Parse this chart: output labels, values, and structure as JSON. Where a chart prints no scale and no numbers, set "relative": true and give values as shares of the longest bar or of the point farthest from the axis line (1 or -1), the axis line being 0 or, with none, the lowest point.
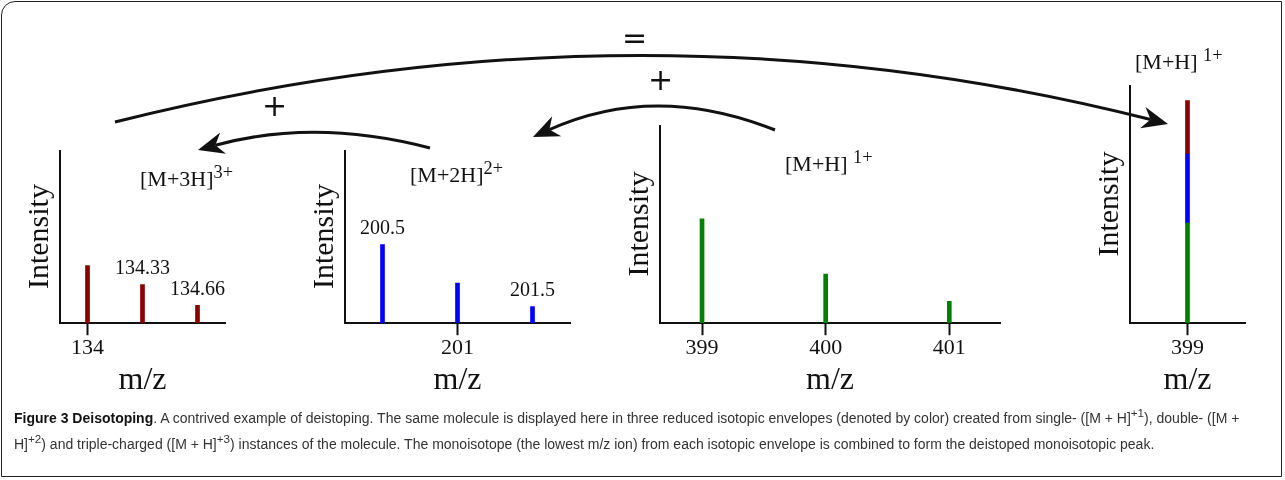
{
  "chart_data": [
    {
      "type": "bar",
      "title": "[M+3H]$^{3+}$",
      "xlabel": "m/z",
      "ylabel": "Intensity",
      "relative": true,
      "categories": [
        "134",
        null,
        null
      ],
      "values": [
        1,
        0.67,
        0.31
      ],
      "color": "#8b0000",
      "annotations": [
        {
          "text": "134.33",
          "y": 0.67
        },
        {
          "text": "134.66",
          "y": 0.31
        }
      ]
    },
    {
      "type": "bar",
      "title": "[M+2H]$^{2+}$",
      "xlabel": "m/z",
      "ylabel": "Intensity",
      "relative": true,
      "categories": [
        null,
        "201",
        null
      ],
      "values": [
        1,
        0.51,
        0.21
      ],
      "color": "#0000ff",
      "annotations": [
        {
          "text": "200.5",
          "y": 1
        },
        {
          "text": "201.5",
          "y": 0.21
        }
      ]
    },
    {
      "type": "bar",
      "title": "[M+H] $^{1+}$",
      "xlabel": "m/z",
      "ylabel": "Intensity",
      "relative": true,
      "x": [
        399,
        400,
        401
      ],
      "values": [
        1,
        0.47,
        0.21
      ],
      "color": "#008000",
      "xlim": [
        398.66,
        401.41
      ],
      "xticks": [
        399,
        400,
        401
      ]
    },
    {
      "type": "bar",
      "stacked": true,
      "title": "[M+H] $^{1+}$",
      "xlabel": "m/z",
      "ylabel": "Intensity",
      "relative": true,
      "categories": [
        "399"
      ],
      "series": [
        {
          "color": "#008000",
          "values": [
            0.45
          ]
        },
        {
          "color": "#0000ff",
          "values": [
            0.31
          ]
        },
        {
          "color": "#8b0000",
          "values": [
            0.24
          ]
        }
      ]
    },
    {
      "type": "other",
      "title": "Figure 3 Deisotoping",
      "annotations": [
        ". A contrived example of deistoping. The same molecule is displayed here in three reduced isotopic envelopes (denoted by color) created from single- ([M + H]$^{+1}$), double- ([M + H]$^{+2}$) and triple-charged ([M + H]$^{+3}$) instances of the molecule. The monoisotope (the lowest m/z ion) from each isotopic envelope is combined to form the deistoped monoisotopic peak.",
        "=",
        "+",
        "+"
      ]
    }
  ]
}
